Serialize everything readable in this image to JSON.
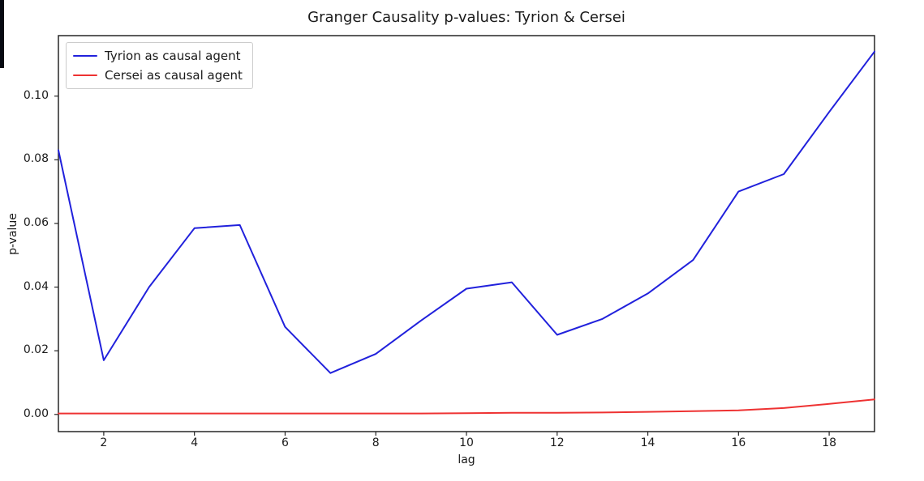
{
  "figure": {
    "title": "Granger Causality p-values: Tyrion & Cersei",
    "xlabel": "lag",
    "ylabel": "p-value"
  },
  "legend": {
    "items": [
      {
        "label": "Tyrion as causal agent",
        "color": "#2121dc"
      },
      {
        "label": "Cersei as causal agent",
        "color": "#ee3232"
      }
    ]
  },
  "colors": {
    "spine": "#262626",
    "tick": "#262626",
    "text": "#1a1a1a",
    "background": "#ffffff"
  },
  "chart_data": {
    "type": "line",
    "title": "Granger Causality p-values: Tyrion & Cersei",
    "xlabel": "lag",
    "ylabel": "p-value",
    "grid": false,
    "legend_position": "upper left",
    "xlim": [
      1,
      19
    ],
    "ylim": [
      -0.0054,
      0.119
    ],
    "xticks": [
      2,
      4,
      6,
      8,
      10,
      12,
      14,
      16,
      18
    ],
    "yticks": [
      0.0,
      0.02,
      0.04,
      0.06,
      0.08,
      0.1
    ],
    "ytick_labels": [
      "0.00",
      "0.02",
      "0.04",
      "0.06",
      "0.08",
      "0.10"
    ],
    "x": [
      1,
      2,
      3,
      4,
      5,
      6,
      7,
      8,
      9,
      10,
      11,
      12,
      13,
      14,
      15,
      16,
      17,
      18,
      19
    ],
    "series": [
      {
        "name": "Tyrion as causal agent",
        "color": "#2121dc",
        "values": [
          0.083,
          0.017,
          0.04,
          0.0585,
          0.0595,
          0.0275,
          0.013,
          0.019,
          0.0295,
          0.0395,
          0.0415,
          0.025,
          0.03,
          0.038,
          0.0485,
          0.07,
          0.0755,
          0.095,
          0.114
        ]
      },
      {
        "name": "Cersei as causal agent",
        "color": "#ee3232",
        "values": [
          0.0003,
          0.0003,
          0.0003,
          0.0003,
          0.0003,
          0.0003,
          0.0003,
          0.0003,
          0.0003,
          0.0004,
          0.0005,
          0.0005,
          0.0006,
          0.0008,
          0.001,
          0.0013,
          0.002,
          0.0033,
          0.0047
        ]
      }
    ]
  }
}
